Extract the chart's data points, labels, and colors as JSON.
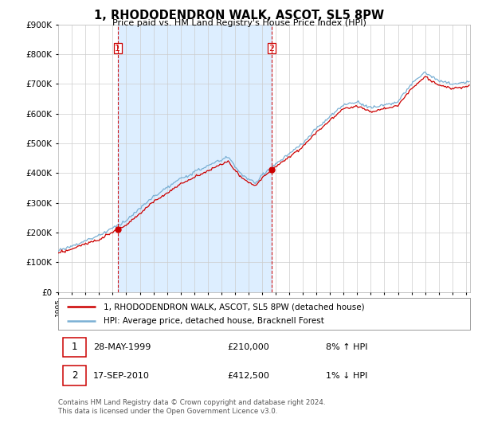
{
  "title": "1, RHODODENDRON WALK, ASCOT, SL5 8PW",
  "subtitle": "Price paid vs. HM Land Registry's House Price Index (HPI)",
  "ylim": [
    0,
    900000
  ],
  "yticks": [
    0,
    100000,
    200000,
    300000,
    400000,
    500000,
    600000,
    700000,
    800000,
    900000
  ],
  "sale1_date": "28-MAY-1999",
  "sale1_price": 210000,
  "sale1_hpi": "8% ↑ HPI",
  "sale1_t": 1999.37,
  "sale2_date": "17-SEP-2010",
  "sale2_price": 412500,
  "sale2_hpi": "1% ↓ HPI",
  "sale2_t": 2010.71,
  "legend_line1": "1, RHODODENDRON WALK, ASCOT, SL5 8PW (detached house)",
  "legend_line2": "HPI: Average price, detached house, Bracknell Forest",
  "footer": "Contains HM Land Registry data © Crown copyright and database right 2024.\nThis data is licensed under the Open Government Licence v3.0.",
  "red_color": "#cc0000",
  "blue_color": "#7ab0d4",
  "shade_color": "#ddeeff",
  "background_color": "#ffffff",
  "grid_color": "#cccccc"
}
